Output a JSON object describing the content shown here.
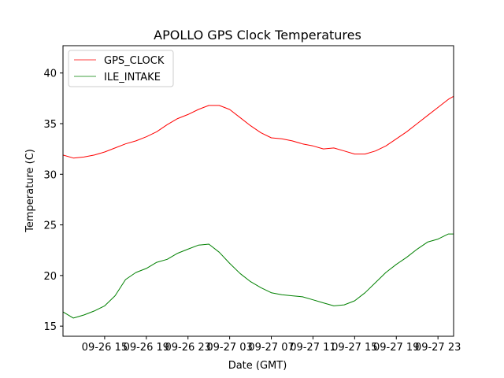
{
  "chart_data": {
    "type": "line",
    "title": "APOLLO GPS Clock Temperatures",
    "xlabel": "Date (GMT)",
    "ylabel": "Temperature (C)",
    "xlim": [
      "09-26 11:00",
      "09-28 00:30"
    ],
    "ylim": [
      14,
      42.7
    ],
    "x_ticks": [
      "09-26 15",
      "09-26 19",
      "09-26 23",
      "09-27 03",
      "09-27 07",
      "09-27 11",
      "09-27 15",
      "09-27 19",
      "09-27 23"
    ],
    "y_ticks": [
      15,
      20,
      25,
      30,
      35,
      40
    ],
    "grid": false,
    "legend": "top-left",
    "series": [
      {
        "name": "GPS_CLOCK",
        "color": "#ff0000",
        "x": [
          "09-26 11:00",
          "09-26 12:00",
          "09-26 13:00",
          "09-26 14:00",
          "09-26 15:00",
          "09-26 16:00",
          "09-26 17:00",
          "09-26 18:00",
          "09-26 19:00",
          "09-26 20:00",
          "09-26 21:00",
          "09-26 22:00",
          "09-26 23:00",
          "09-27 00:00",
          "09-27 01:00",
          "09-27 02:00",
          "09-27 03:00",
          "09-27 04:00",
          "09-27 05:00",
          "09-27 06:00",
          "09-27 07:00",
          "09-27 08:00",
          "09-27 09:00",
          "09-27 10:00",
          "09-27 11:00",
          "09-27 12:00",
          "09-27 13:00",
          "09-27 14:00",
          "09-27 15:00",
          "09-27 16:00",
          "09-27 17:00",
          "09-27 18:00",
          "09-27 19:00",
          "09-27 20:00",
          "09-27 21:00",
          "09-27 22:00",
          "09-27 23:00",
          "09-28 00:00",
          "09-28 00:30"
        ],
        "values": [
          31.9,
          31.6,
          31.7,
          31.9,
          32.2,
          32.6,
          33.0,
          33.3,
          33.7,
          34.2,
          34.9,
          35.5,
          35.9,
          36.4,
          36.8,
          36.8,
          36.4,
          35.6,
          34.8,
          34.1,
          33.6,
          33.5,
          33.3,
          33.0,
          32.8,
          32.5,
          32.6,
          32.3,
          32.0,
          32.0,
          32.3,
          32.8,
          33.5,
          34.2,
          35.0,
          35.8,
          36.6,
          37.4,
          37.7
        ]
      },
      {
        "name": "ILE_INTAKE",
        "color": "#008000",
        "x": [
          "09-26 11:00",
          "09-26 12:00",
          "09-26 13:00",
          "09-26 14:00",
          "09-26 15:00",
          "09-26 16:00",
          "09-26 17:00",
          "09-26 18:00",
          "09-26 19:00",
          "09-26 20:00",
          "09-26 21:00",
          "09-26 22:00",
          "09-26 23:00",
          "09-27 00:00",
          "09-27 01:00",
          "09-27 02:00",
          "09-27 03:00",
          "09-27 04:00",
          "09-27 05:00",
          "09-27 06:00",
          "09-27 07:00",
          "09-27 08:00",
          "09-27 09:00",
          "09-27 10:00",
          "09-27 11:00",
          "09-27 12:00",
          "09-27 13:00",
          "09-27 14:00",
          "09-27 15:00",
          "09-27 16:00",
          "09-27 17:00",
          "09-27 18:00",
          "09-27 19:00",
          "09-27 20:00",
          "09-27 21:00",
          "09-27 22:00",
          "09-27 23:00",
          "09-28 00:00",
          "09-28 00:30"
        ],
        "values": [
          16.4,
          15.8,
          16.1,
          16.5,
          17.0,
          18.0,
          19.6,
          20.3,
          20.7,
          21.3,
          21.6,
          22.2,
          22.6,
          23.0,
          23.1,
          22.3,
          21.2,
          20.2,
          19.4,
          18.8,
          18.3,
          18.1,
          18.0,
          17.9,
          17.6,
          17.3,
          17.0,
          17.1,
          17.5,
          18.3,
          19.3,
          20.3,
          21.1,
          21.8,
          22.6,
          23.3,
          23.6,
          24.1,
          24.1
        ]
      }
    ]
  }
}
